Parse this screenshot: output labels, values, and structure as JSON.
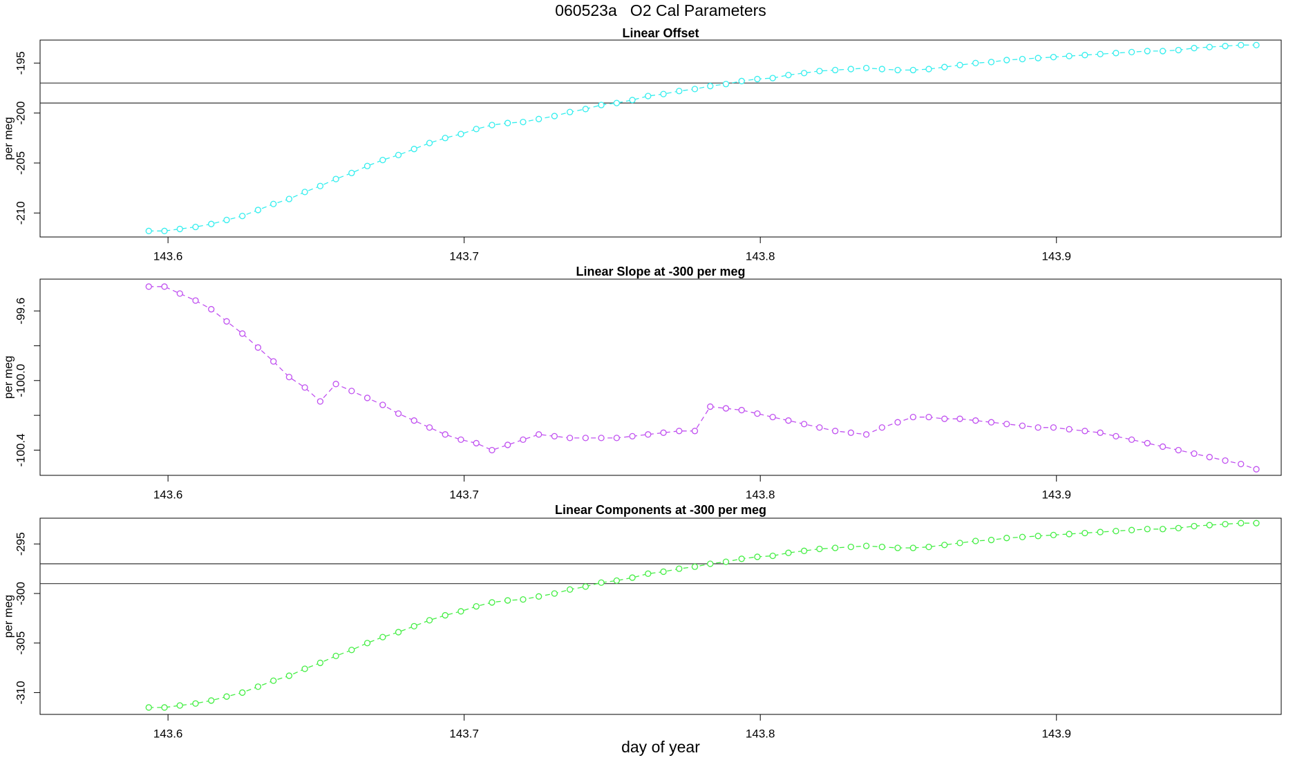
{
  "title": "060523a   O2 Cal Parameters",
  "xlabel": "day of year",
  "chart_data": [
    {
      "type": "line",
      "title": "Linear Offset",
      "ylabel": "per meg",
      "color": "#33eeee",
      "x": [
        143.5935,
        143.5988,
        143.604,
        143.6093,
        143.6146,
        143.6198,
        143.6251,
        143.6304,
        143.6356,
        143.6409,
        143.6462,
        143.6514,
        143.6567,
        143.662,
        143.6673,
        143.6725,
        143.6778,
        143.6831,
        143.6883,
        143.6936,
        143.6989,
        143.7041,
        143.7094,
        143.7147,
        143.7199,
        143.7252,
        143.7305,
        143.7357,
        143.741,
        143.7463,
        143.7515,
        143.7568,
        143.7621,
        143.7673,
        143.7726,
        143.7779,
        143.7831,
        143.7884,
        143.7937,
        143.799,
        143.8042,
        143.8095,
        143.8148,
        143.82,
        143.8253,
        143.8306,
        143.8358,
        143.8411,
        143.8464,
        143.8516,
        143.8569,
        143.8622,
        143.8674,
        143.8727,
        143.878,
        143.8832,
        143.8885,
        143.8938,
        143.899,
        143.9043,
        143.9096,
        143.9148,
        143.9201,
        143.9254,
        143.9307,
        143.9359,
        143.9412,
        143.9465,
        143.9517,
        143.957,
        143.9623,
        143.9675
      ],
      "values": [
        -211.8,
        -211.8,
        -211.6,
        -211.4,
        -211.1,
        -210.7,
        -210.3,
        -209.7,
        -209.1,
        -208.6,
        -207.9,
        -207.3,
        -206.6,
        -206.0,
        -205.3,
        -204.7,
        -204.2,
        -203.6,
        -203.0,
        -202.5,
        -202.1,
        -201.6,
        -201.2,
        -201.0,
        -200.9,
        -200.6,
        -200.3,
        -199.9,
        -199.6,
        -199.2,
        -199.0,
        -198.7,
        -198.3,
        -198.1,
        -197.8,
        -197.6,
        -197.3,
        -197.1,
        -196.8,
        -196.6,
        -196.5,
        -196.2,
        -196.0,
        -195.8,
        -195.7,
        -195.6,
        -195.5,
        -195.6,
        -195.7,
        -195.7,
        -195.6,
        -195.4,
        -195.2,
        -195.0,
        -194.9,
        -194.7,
        -194.6,
        -194.5,
        -194.4,
        -194.3,
        -194.2,
        -194.1,
        -194.0,
        -193.9,
        -193.8,
        -193.8,
        -193.7,
        -193.5,
        -193.4,
        -193.3,
        -193.2,
        -193.2
      ],
      "xlim": [
        143.5568,
        143.9759
      ],
      "xticks": [
        143.6,
        143.7,
        143.8,
        143.9
      ],
      "ylim": [
        -212.4,
        -192.7
      ],
      "yticks": [
        -195,
        -200,
        -205,
        -210
      ],
      "hlines": [
        -197,
        -199
      ]
    },
    {
      "type": "line",
      "title": "Linear Slope at -300 per meg",
      "ylabel": "per meg",
      "color": "#c050f0",
      "x": [
        143.5935,
        143.5988,
        143.604,
        143.6093,
        143.6146,
        143.6198,
        143.6251,
        143.6304,
        143.6356,
        143.6409,
        143.6462,
        143.6514,
        143.6567,
        143.662,
        143.6673,
        143.6725,
        143.6778,
        143.6831,
        143.6883,
        143.6936,
        143.6989,
        143.7041,
        143.7094,
        143.7147,
        143.7199,
        143.7252,
        143.7305,
        143.7357,
        143.741,
        143.7463,
        143.7515,
        143.7568,
        143.7621,
        143.7673,
        143.7726,
        143.7779,
        143.7831,
        143.7884,
        143.7937,
        143.799,
        143.8042,
        143.8095,
        143.8148,
        143.82,
        143.8253,
        143.8306,
        143.8358,
        143.8411,
        143.8464,
        143.8516,
        143.8569,
        143.8622,
        143.8674,
        143.8727,
        143.878,
        143.8832,
        143.8885,
        143.8938,
        143.899,
        143.9043,
        143.9096,
        143.9148,
        143.9201,
        143.9254,
        143.9307,
        143.9359,
        143.9412,
        143.9465,
        143.9517,
        143.957,
        143.9623,
        143.9675
      ],
      "values": [
        -99.46,
        -99.46,
        -99.5,
        -99.54,
        -99.59,
        -99.66,
        -99.73,
        -99.81,
        -99.89,
        -99.98,
        -100.04,
        -100.12,
        -100.02,
        -100.06,
        -100.1,
        -100.14,
        -100.19,
        -100.23,
        -100.27,
        -100.31,
        -100.34,
        -100.36,
        -100.4,
        -100.37,
        -100.34,
        -100.31,
        -100.32,
        -100.33,
        -100.33,
        -100.33,
        -100.33,
        -100.32,
        -100.31,
        -100.3,
        -100.29,
        -100.29,
        -100.15,
        -100.16,
        -100.17,
        -100.19,
        -100.21,
        -100.23,
        -100.25,
        -100.27,
        -100.29,
        -100.3,
        -100.31,
        -100.27,
        -100.24,
        -100.21,
        -100.21,
        -100.22,
        -100.22,
        -100.23,
        -100.24,
        -100.25,
        -100.26,
        -100.27,
        -100.27,
        -100.28,
        -100.29,
        -100.3,
        -100.32,
        -100.34,
        -100.36,
        -100.38,
        -100.4,
        -100.42,
        -100.44,
        -100.46,
        -100.48,
        -100.51
      ],
      "xlim": [
        143.5568,
        143.9759
      ],
      "xticks": [
        143.6,
        143.7,
        143.8,
        143.9
      ],
      "ylim": [
        -100.545,
        -99.417
      ],
      "yticks": [
        -99.6,
        {
          "value": -100,
          "label": "-100.0"
        },
        -100.4
      ],
      "yticks_minor": [
        -99.8,
        -100.2
      ]
    },
    {
      "type": "line",
      "title": "Linear Components at -300 per meg",
      "ylabel": "per meg",
      "color": "#44ee44",
      "x": [
        143.5935,
        143.5988,
        143.604,
        143.6093,
        143.6146,
        143.6198,
        143.6251,
        143.6304,
        143.6356,
        143.6409,
        143.6462,
        143.6514,
        143.6567,
        143.662,
        143.6673,
        143.6725,
        143.6778,
        143.6831,
        143.6883,
        143.6936,
        143.6989,
        143.7041,
        143.7094,
        143.7147,
        143.7199,
        143.7252,
        143.7305,
        143.7357,
        143.741,
        143.7463,
        143.7515,
        143.7568,
        143.7621,
        143.7673,
        143.7726,
        143.7779,
        143.7831,
        143.7884,
        143.7937,
        143.799,
        143.8042,
        143.8095,
        143.8148,
        143.82,
        143.8253,
        143.8306,
        143.8358,
        143.8411,
        143.8464,
        143.8516,
        143.8569,
        143.8622,
        143.8674,
        143.8727,
        143.878,
        143.8832,
        143.8885,
        143.8938,
        143.899,
        143.9043,
        143.9096,
        143.9148,
        143.9201,
        143.9254,
        143.9307,
        143.9359,
        143.9412,
        143.9465,
        143.9517,
        143.957,
        143.9623,
        143.9675
      ],
      "values": [
        -311.5,
        -311.5,
        -311.3,
        -311.1,
        -310.8,
        -310.4,
        -310.0,
        -309.4,
        -308.8,
        -308.3,
        -307.6,
        -307.0,
        -306.3,
        -305.7,
        -305.0,
        -304.4,
        -303.9,
        -303.3,
        -302.7,
        -302.2,
        -301.8,
        -301.3,
        -300.9,
        -300.7,
        -300.6,
        -300.3,
        -300.0,
        -299.6,
        -299.3,
        -298.9,
        -298.7,
        -298.4,
        -298.0,
        -297.8,
        -297.5,
        -297.3,
        -297.0,
        -296.8,
        -296.5,
        -296.3,
        -296.2,
        -295.9,
        -295.7,
        -295.5,
        -295.4,
        -295.3,
        -295.2,
        -295.3,
        -295.4,
        -295.4,
        -295.3,
        -295.1,
        -294.9,
        -294.7,
        -294.6,
        -294.4,
        -294.3,
        -294.2,
        -294.1,
        -294.0,
        -293.9,
        -293.8,
        -293.7,
        -293.6,
        -293.5,
        -293.5,
        -293.4,
        -293.2,
        -293.1,
        -293.0,
        -292.9,
        -292.9
      ],
      "xlim": [
        143.5568,
        143.9759
      ],
      "xticks": [
        143.6,
        143.7,
        143.8,
        143.9
      ],
      "ylim": [
        -312.2,
        -292.4
      ],
      "yticks": [
        -295,
        -300,
        -305,
        -310
      ],
      "hlines": [
        -297,
        -299
      ]
    }
  ]
}
